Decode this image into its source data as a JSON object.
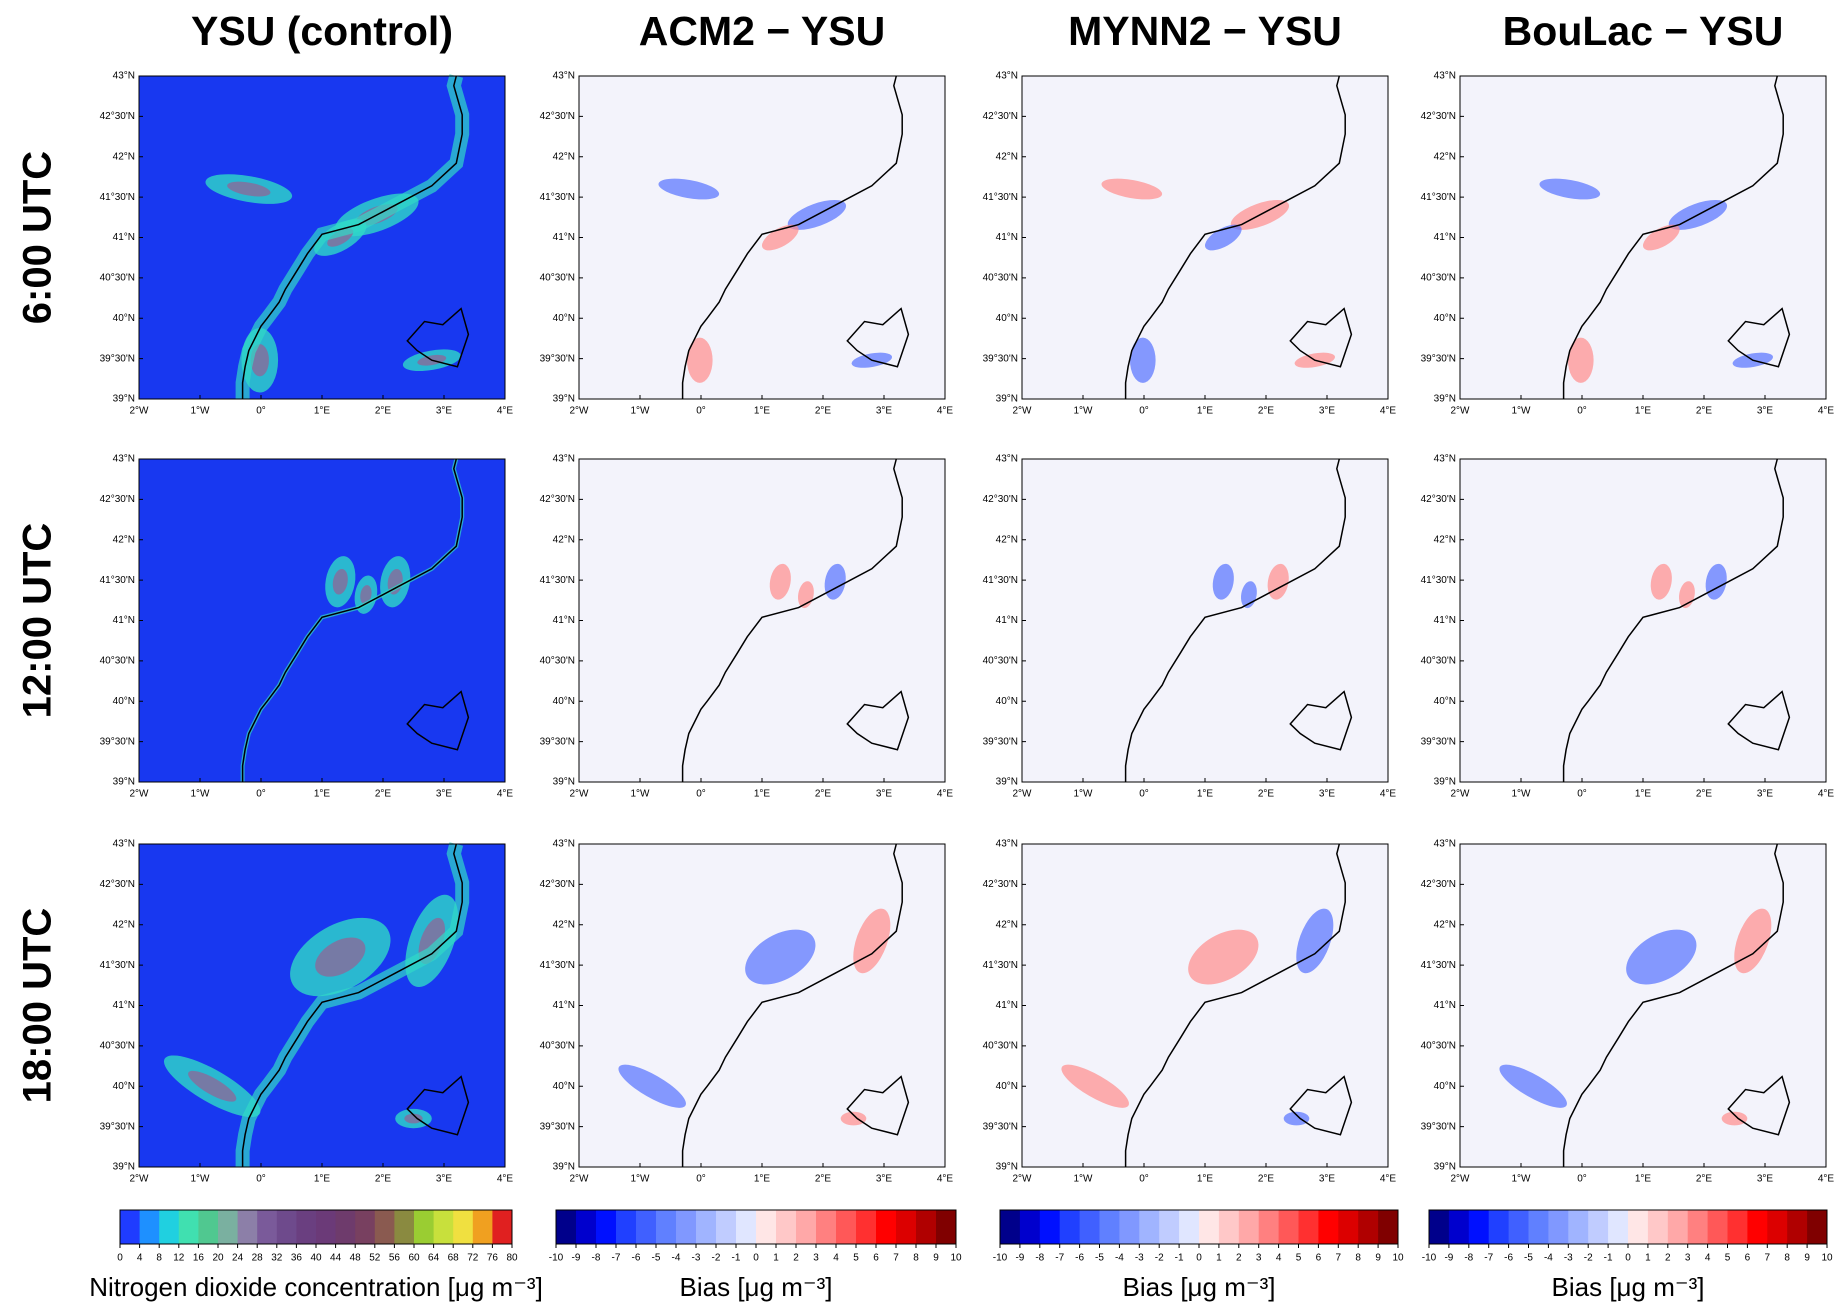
{
  "columns": [
    {
      "title": "YSU (control)",
      "fill": "#1838f0"
    },
    {
      "title": "ACM2 − YSU",
      "fill": "#f3f3fb"
    },
    {
      "title": "MYNN2 − YSU",
      "fill": "#f3f3fb"
    },
    {
      "title": "BouLac − YSU",
      "fill": "#f3f3fb"
    }
  ],
  "rows": [
    "6:00 UTC",
    "12:00 UTC",
    "18:00 UTC"
  ],
  "lat_ticks": [
    "43°N",
    "42°30'N",
    "42°N",
    "41°30'N",
    "41°N",
    "40°30'N",
    "40°N",
    "39°30'N",
    "39°N"
  ],
  "lon_ticks": [
    "2°W",
    "1°W",
    "0°",
    "1°E",
    "2°E",
    "3°E",
    "4°E"
  ],
  "colorbars": [
    {
      "label": "Nitrogen dioxide concentration [μg m⁻³]",
      "ticks": [
        0,
        4,
        8,
        12,
        16,
        20,
        24,
        28,
        32,
        36,
        40,
        44,
        48,
        52,
        56,
        60,
        64,
        68,
        72,
        76,
        80
      ],
      "colors": [
        "#1f3cff",
        "#1e90ff",
        "#20d0e0",
        "#40e0b0",
        "#50c890",
        "#7ab0a0",
        "#8c7fa8",
        "#7a5a9a",
        "#6e4a8c",
        "#6a3f80",
        "#6b3a78",
        "#6e3b6c",
        "#784060",
        "#8a5a50",
        "#8a8a40",
        "#9acd32",
        "#c8e03c",
        "#f0e040",
        "#f0a020",
        "#e02020"
      ]
    },
    {
      "label": "Bias [μg m⁻³]",
      "ticks": [
        -10,
        -9,
        -8,
        -7,
        -6,
        -5,
        -4,
        -3,
        -2,
        -1,
        0,
        1,
        2,
        3,
        4,
        5,
        6,
        7,
        8,
        9,
        10
      ],
      "colors": [
        "#00008b",
        "#0000cd",
        "#0010ff",
        "#2040ff",
        "#4060ff",
        "#6080ff",
        "#8098ff",
        "#a0b4ff",
        "#c0ccff",
        "#e0e6ff",
        "#ffe6e6",
        "#ffc8c8",
        "#ffa8a8",
        "#ff8080",
        "#ff5858",
        "#ff3030",
        "#ff0000",
        "#dc0000",
        "#b00000",
        "#800000"
      ]
    },
    {
      "label": "Bias [μg m⁻³]",
      "ticks": [
        -10,
        -9,
        -8,
        -7,
        -6,
        -5,
        -4,
        -3,
        -2,
        -1,
        0,
        1,
        2,
        3,
        4,
        5,
        6,
        7,
        8,
        9,
        10
      ],
      "colors": [
        "#00008b",
        "#0000cd",
        "#0010ff",
        "#2040ff",
        "#4060ff",
        "#6080ff",
        "#8098ff",
        "#a0b4ff",
        "#c0ccff",
        "#e0e6ff",
        "#ffe6e6",
        "#ffc8c8",
        "#ffa8a8",
        "#ff8080",
        "#ff5858",
        "#ff3030",
        "#ff0000",
        "#dc0000",
        "#b00000",
        "#800000"
      ]
    },
    {
      "label": "Bias [μg m⁻³]",
      "ticks": [
        -10,
        -9,
        -8,
        -7,
        -6,
        -5,
        -4,
        -3,
        -2,
        -1,
        0,
        1,
        2,
        3,
        4,
        5,
        6,
        7,
        8,
        9,
        10
      ],
      "colors": [
        "#00008b",
        "#0000cd",
        "#0010ff",
        "#2040ff",
        "#4060ff",
        "#6080ff",
        "#8098ff",
        "#a0b4ff",
        "#c0ccff",
        "#e0e6ff",
        "#ffe6e6",
        "#ffc8c8",
        "#ffa8a8",
        "#ff8080",
        "#ff5858",
        "#ff3030",
        "#ff0000",
        "#dc0000",
        "#b00000",
        "#800000"
      ]
    }
  ]
}
